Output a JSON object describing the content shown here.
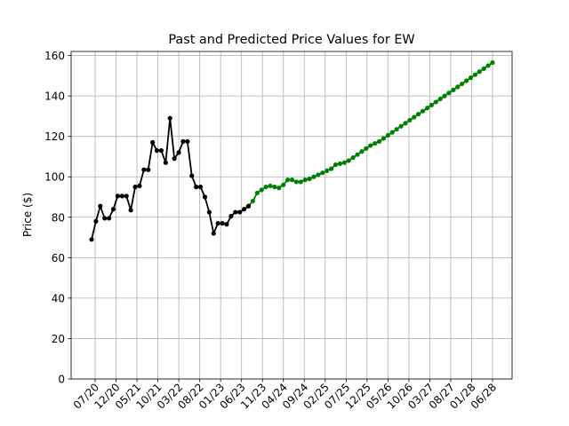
{
  "chart_data": {
    "type": "line",
    "title": "Past and Predicted Price Values for EW",
    "xlabel": "",
    "ylabel": "Price ($)",
    "ylim": [
      0,
      162
    ],
    "yticks": [
      0,
      20,
      40,
      60,
      80,
      100,
      120,
      140,
      160
    ],
    "xticks": [
      "07/20",
      "12/20",
      "05/21",
      "10/21",
      "03/22",
      "08/22",
      "01/23",
      "06/23",
      "11/23",
      "04/24",
      "09/24",
      "02/25",
      "07/25",
      "12/25",
      "05/26",
      "10/26",
      "03/27",
      "08/27",
      "01/28",
      "06/28"
    ],
    "grid": true,
    "colors": {
      "past": "#000000",
      "predicted": "#008000"
    },
    "series": [
      {
        "key": "past",
        "values": [
          69,
          78,
          85.5,
          79.5,
          79.5,
          84,
          90.5,
          90.5,
          90.5,
          83.5,
          95,
          95.5,
          103.5,
          103.5,
          117,
          113,
          113,
          107,
          129,
          109,
          112,
          117.5,
          117.5,
          100.5,
          95,
          95,
          90,
          82.5,
          72,
          77,
          77,
          76.5,
          80.5,
          82.5,
          82.5,
          84,
          85.5
        ]
      },
      {
        "key": "predicted",
        "values": [
          85.5,
          88,
          92,
          93.5,
          95,
          95.5,
          95,
          94.5,
          96,
          98.5,
          98.5,
          97.5,
          97.5,
          98.5,
          99,
          100,
          101,
          102,
          103,
          104,
          106,
          106.5,
          107,
          108,
          109.5,
          111,
          112.5,
          114,
          115.5,
          116.5,
          117.5,
          119,
          120.5,
          122,
          123.5,
          125,
          126.5,
          128,
          129.5,
          131,
          132.5,
          134,
          135.5,
          137,
          138.5,
          140,
          141.5,
          143,
          144.5,
          146,
          147.5,
          149,
          150.5,
          152,
          153.5,
          155,
          156.5
        ]
      }
    ]
  }
}
